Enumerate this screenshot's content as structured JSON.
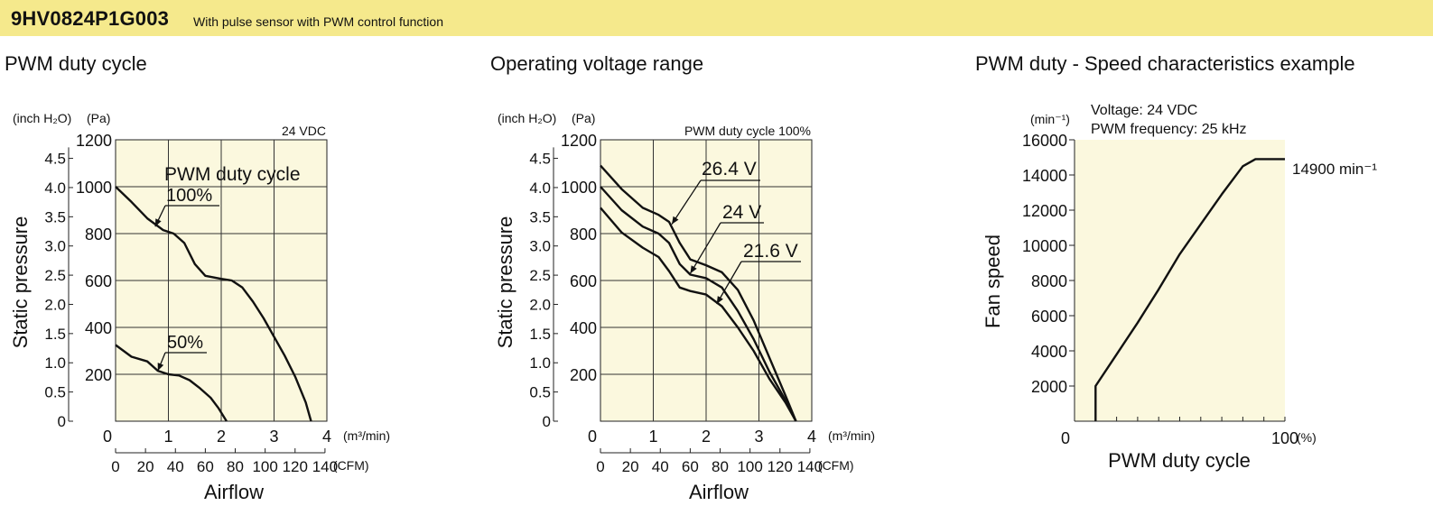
{
  "header": {
    "model": "9HV0824P1G003",
    "description": "With pulse sensor with PWM control function"
  },
  "sections": [
    {
      "title": "PWM duty cycle"
    },
    {
      "title": "Operating voltage range"
    },
    {
      "title": "PWM duty - Speed characteristics example"
    }
  ],
  "chart_data": [
    {
      "type": "line",
      "title": "PWM duty cycle",
      "condition": "24 VDC",
      "xlabel": "Airflow",
      "ylabel": "Static pressure",
      "x_unit_primary": "(m³/min)",
      "x_unit_secondary": "(CFM)",
      "y_unit_primary": "(Pa)",
      "y_unit_secondary": "(inch H₂O)",
      "xlim": [
        0,
        4
      ],
      "ylim": [
        0,
        1200
      ],
      "x_ticks": [
        "0",
        "1",
        "2",
        "3",
        "4"
      ],
      "x2_ticks": [
        "0",
        "20",
        "40",
        "60",
        "80",
        "100",
        "120",
        "140"
      ],
      "y_ticks": [
        "1200",
        "1000",
        "800",
        "600",
        "400",
        "200"
      ],
      "y2_ticks": [
        "4.5",
        "4.0",
        "3.5",
        "3.0",
        "2.5",
        "2.0",
        "1.5",
        "1.0",
        "0.5",
        "0"
      ],
      "grid": true,
      "legend_title": "PWM duty cycle",
      "series": [
        {
          "name": "100%",
          "x": [
            0,
            0.3,
            0.6,
            0.9,
            1.1,
            1.3,
            1.5,
            1.7,
            2.0,
            2.2,
            2.4,
            2.6,
            2.8,
            3.0,
            3.2,
            3.4,
            3.6,
            3.7
          ],
          "y": [
            1000,
            935,
            865,
            815,
            800,
            760,
            670,
            620,
            607,
            600,
            570,
            510,
            440,
            360,
            280,
            190,
            80,
            0
          ]
        },
        {
          "name": "50%",
          "x": [
            0,
            0.3,
            0.6,
            0.8,
            1.0,
            1.2,
            1.4,
            1.6,
            1.8,
            1.95,
            2.1
          ],
          "y": [
            325,
            275,
            255,
            215,
            200,
            195,
            175,
            140,
            100,
            55,
            0
          ]
        }
      ]
    },
    {
      "type": "line",
      "title": "Operating voltage range",
      "condition": "PWM duty cycle 100%",
      "xlabel": "Airflow",
      "ylabel": "Static pressure",
      "x_unit_primary": "(m³/min)",
      "x_unit_secondary": "(CFM)",
      "y_unit_primary": "(Pa)",
      "y_unit_secondary": "(inch H₂O)",
      "xlim": [
        0,
        4
      ],
      "ylim": [
        0,
        1200
      ],
      "x_ticks": [
        "0",
        "1",
        "2",
        "3",
        "4"
      ],
      "x2_ticks": [
        "0",
        "20",
        "40",
        "60",
        "80",
        "100",
        "120",
        "140"
      ],
      "y_ticks": [
        "1200",
        "1000",
        "800",
        "600",
        "400",
        "200"
      ],
      "y2_ticks": [
        "4.5",
        "4.0",
        "3.5",
        "3.0",
        "2.5",
        "2.0",
        "1.5",
        "1.0",
        "0.5",
        "0"
      ],
      "grid": true,
      "series": [
        {
          "name": "26.4 V",
          "x": [
            0,
            0.4,
            0.8,
            1.1,
            1.3,
            1.5,
            1.7,
            2.0,
            2.3,
            2.6,
            2.9,
            3.2,
            3.5,
            3.7
          ],
          "y": [
            1090,
            990,
            910,
            880,
            850,
            760,
            690,
            665,
            635,
            560,
            430,
            270,
            110,
            0
          ]
        },
        {
          "name": "24 V",
          "x": [
            0,
            0.4,
            0.8,
            1.1,
            1.3,
            1.5,
            1.7,
            2.0,
            2.3,
            2.6,
            2.9,
            3.2,
            3.5,
            3.7
          ],
          "y": [
            1000,
            900,
            830,
            800,
            760,
            670,
            625,
            610,
            570,
            470,
            350,
            210,
            90,
            0
          ]
        },
        {
          "name": "21.6 V",
          "x": [
            0,
            0.4,
            0.8,
            1.1,
            1.3,
            1.5,
            1.7,
            2.0,
            2.3,
            2.6,
            2.9,
            3.2,
            3.5,
            3.7
          ],
          "y": [
            910,
            805,
            740,
            700,
            640,
            570,
            555,
            540,
            490,
            400,
            300,
            180,
            80,
            0
          ]
        }
      ]
    },
    {
      "type": "line",
      "title": "PWM duty - Speed characteristics example",
      "conditions": [
        "Voltage: 24 VDC",
        "PWM frequency: 25 kHz"
      ],
      "xlabel": "PWM duty cycle",
      "ylabel": "Fan speed",
      "x_unit": "(%)",
      "y_unit": "(min⁻¹)",
      "xlim": [
        0,
        100
      ],
      "ylim": [
        0,
        16000
      ],
      "x_ticks": [
        "0",
        "100"
      ],
      "y_ticks": [
        "16000",
        "14000",
        "12000",
        "10000",
        "8000",
        "6000",
        "4000",
        "2000"
      ],
      "grid": false,
      "annotation": "14900 min⁻¹",
      "series": [
        {
          "x": [
            10,
            10,
            20,
            30,
            40,
            50,
            60,
            70,
            80,
            86,
            90,
            100
          ],
          "y": [
            0,
            2000,
            3800,
            5600,
            7500,
            9500,
            11200,
            12900,
            14500,
            14900,
            14900,
            14900
          ]
        }
      ]
    }
  ]
}
